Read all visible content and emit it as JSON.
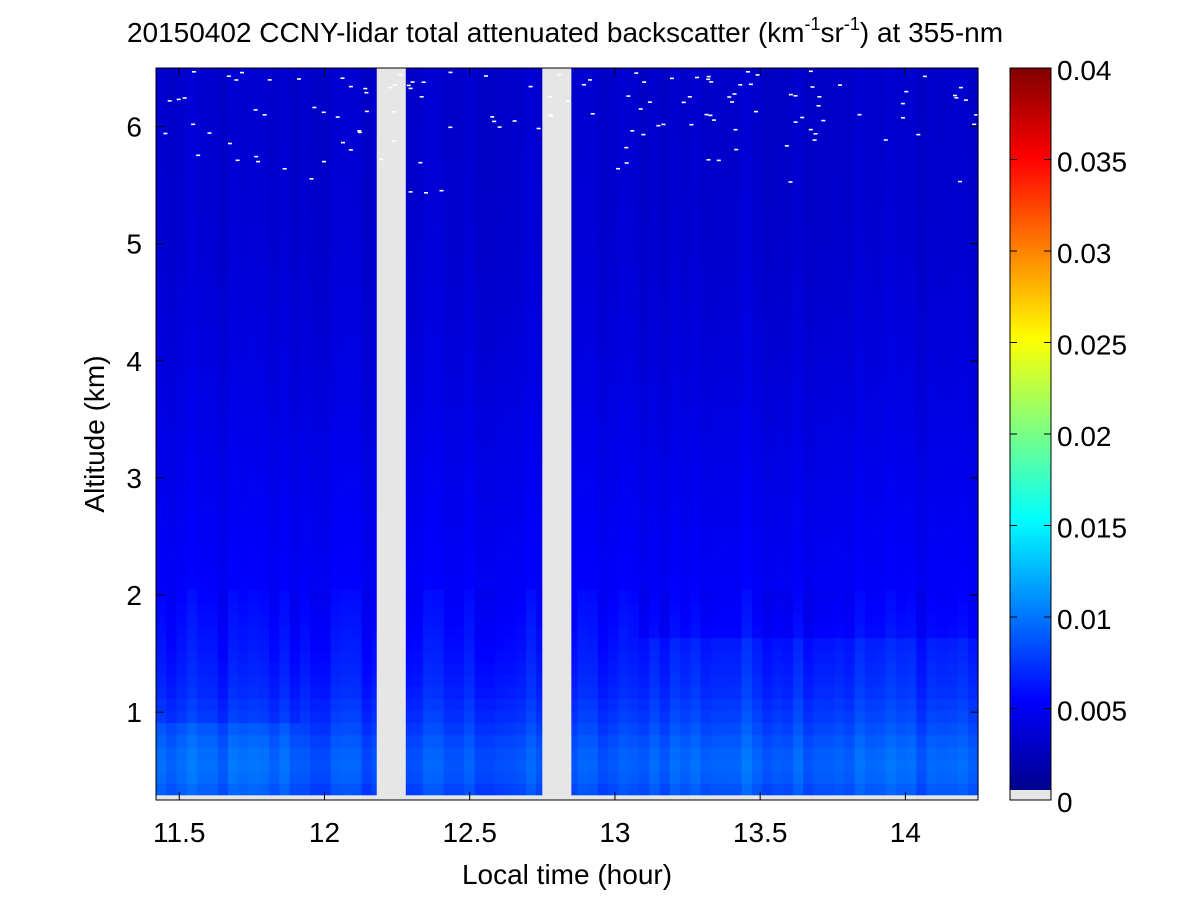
{
  "chart_data": {
    "type": "heatmap",
    "title": {
      "prefix": "20150402 CCNY-lidar total attenuated backscatter (km",
      "exp1": "-1",
      "mid": "sr",
      "exp2": "-1",
      "suffix": ") at 355-nm"
    },
    "xlabel": "Local time (hour)",
    "ylabel": "Altitude (km)",
    "xlim": [
      11.42,
      14.25
    ],
    "ylim": [
      0.25,
      6.5
    ],
    "xticks": [
      "11.5",
      "12",
      "12.5",
      "13",
      "13.5",
      "14"
    ],
    "yticks": [
      "1",
      "2",
      "3",
      "4",
      "5",
      "6"
    ],
    "colorbar": {
      "range": [
        0,
        0.04
      ],
      "ticks": [
        "0",
        "0.005",
        "0.01",
        "0.015",
        "0.02",
        "0.025",
        "0.03",
        "0.035",
        "0.04"
      ],
      "colormap": "jet",
      "nodata_color": "#e6e6e6"
    },
    "data_gaps": [
      [
        12.18,
        12.28
      ],
      [
        12.75,
        12.85
      ]
    ],
    "nodata_altitude_below": 0.29,
    "backscatter_profile": {
      "altitude_km": [
        0.29,
        0.5,
        0.7,
        0.9,
        1.2,
        1.5,
        2.0,
        3.0,
        4.0,
        5.0,
        6.5
      ],
      "value": [
        0.0075,
        0.0085,
        0.0082,
        0.0072,
        0.0062,
        0.0056,
        0.0048,
        0.0042,
        0.0036,
        0.0032,
        0.003
      ]
    },
    "colors": {
      "background_field": "#0a32e6",
      "gap": "#e6e6e6"
    }
  }
}
